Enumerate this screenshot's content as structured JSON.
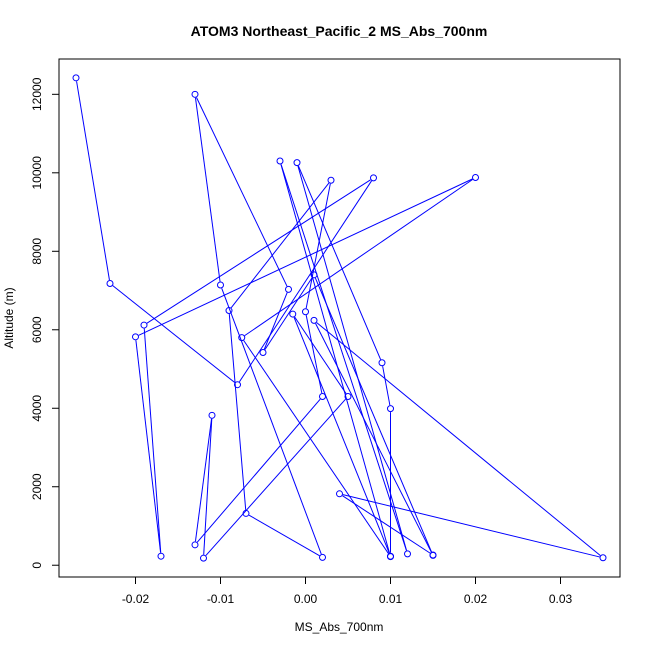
{
  "chart_data": {
    "type": "line",
    "title": "ATOM3 Northeast_Pacific_2 MS_Abs_700nm",
    "xlabel": "MS_Abs_700nm",
    "ylabel": "Altitude (m)",
    "xlim": [
      -0.029,
      0.037
    ],
    "ylim": [
      -300,
      12900
    ],
    "x_ticks": [
      -0.02,
      -0.01,
      0.0,
      0.01,
      0.02,
      0.03
    ],
    "x_tick_labels": [
      "-0.02",
      "-0.01",
      "0.00",
      "0.01",
      "0.02",
      "0.03"
    ],
    "y_ticks": [
      0,
      2000,
      4000,
      6000,
      8000,
      10000,
      12000
    ],
    "y_tick_labels": [
      "0",
      "2000",
      "4000",
      "6000",
      "8000",
      "10000",
      "12000"
    ],
    "grid": false,
    "series": [
      {
        "color": "#0000ff",
        "marker": "open-circle",
        "points": [
          {
            "x": -0.027,
            "y": 12420
          },
          {
            "x": -0.023,
            "y": 7180
          },
          {
            "x": -0.008,
            "y": 4600
          },
          {
            "x": 0.008,
            "y": 9870
          },
          {
            "x": -0.019,
            "y": 6120
          },
          {
            "x": -0.017,
            "y": 230
          },
          {
            "x": -0.02,
            "y": 5820
          },
          {
            "x": 0.02,
            "y": 9880
          },
          {
            "x": -0.0075,
            "y": 5800
          },
          {
            "x": 0.01,
            "y": 220
          },
          {
            "x": -0.003,
            "y": 10300
          },
          {
            "x": 0.012,
            "y": 290
          },
          {
            "x": -0.001,
            "y": 10260
          },
          {
            "x": 0.009,
            "y": 5160
          },
          {
            "x": 0.01,
            "y": 3990
          },
          {
            "x": 0.01,
            "y": 230
          },
          {
            "x": -0.0015,
            "y": 6400
          },
          {
            "x": 0.005,
            "y": 4300
          },
          {
            "x": -0.012,
            "y": 180
          },
          {
            "x": -0.011,
            "y": 3820
          },
          {
            "x": -0.013,
            "y": 520
          },
          {
            "x": 0.002,
            "y": 4300
          },
          {
            "x": 0.0,
            "y": 6460
          },
          {
            "x": 0.003,
            "y": 9810
          },
          {
            "x": -0.009,
            "y": 6490
          },
          {
            "x": -0.007,
            "y": 1320
          },
          {
            "x": 0.002,
            "y": 200
          },
          {
            "x": -0.01,
            "y": 7140
          },
          {
            "x": -0.013,
            "y": 12000
          },
          {
            "x": -0.002,
            "y": 7030
          },
          {
            "x": -0.005,
            "y": 5420
          },
          {
            "x": 0.001,
            "y": 7400
          },
          {
            "x": 0.015,
            "y": 250
          },
          {
            "x": 0.001,
            "y": 6240
          },
          {
            "x": 0.035,
            "y": 190
          },
          {
            "x": 0.004,
            "y": 1820
          },
          {
            "x": 0.015,
            "y": 260
          }
        ]
      }
    ]
  }
}
